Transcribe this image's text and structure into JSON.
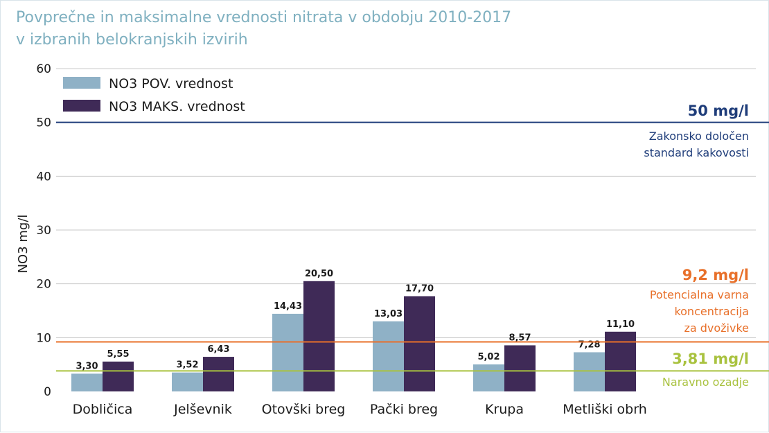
{
  "chart_data": {
    "type": "bar",
    "title": "Povprečne in maksimalne vrednosti nitrata v obdobju 2010-2017",
    "subtitle": "v izbranih belokranjskih izvirih",
    "ylabel": "NO3 mg/l",
    "xlabel": "",
    "ylim": [
      0,
      60
    ],
    "yticks": [
      0,
      10,
      20,
      30,
      40,
      50,
      60
    ],
    "grid": true,
    "legend_position": "top-left",
    "categories": [
      "Dobličica",
      "Jelševnik",
      "Otovški breg",
      "Pački breg",
      "Krupa",
      "Metliški obrh"
    ],
    "series": [
      {
        "name": "NO3 POV. vrednost",
        "color": "#8fb1c6",
        "values": [
          3.3,
          3.52,
          14.43,
          13.03,
          5.02,
          7.28
        ],
        "labels": [
          "3,30",
          "3,52",
          "14,43",
          "13,03",
          "5,02",
          "7,28"
        ]
      },
      {
        "name": "NO3 MAKS. vrednost",
        "color": "#3f2a57",
        "values": [
          5.55,
          6.43,
          20.5,
          17.7,
          8.57,
          11.1
        ],
        "labels": [
          "5,55",
          "6,43",
          "20,50",
          "17,70",
          "8,57",
          "11,10"
        ]
      }
    ],
    "reference_lines": [
      {
        "value": 50,
        "label": "50 mg/l",
        "description": [
          "Zakonsko določen",
          "standard kakovosti"
        ],
        "color": "#1f3d7a"
      },
      {
        "value": 9.2,
        "label": "9,2 mg/l",
        "description": [
          "Potencialna varna",
          "koncentracija",
          "za dvoživke"
        ],
        "color": "#e8702a"
      },
      {
        "value": 3.81,
        "label": "3,81 mg/l",
        "description": [
          "Naravno ozadje"
        ],
        "color": "#a9c23f"
      }
    ],
    "colors": {
      "title": "#7fb0c0",
      "grid": "#c8c8c8",
      "axis": "#1b1b1b"
    }
  }
}
